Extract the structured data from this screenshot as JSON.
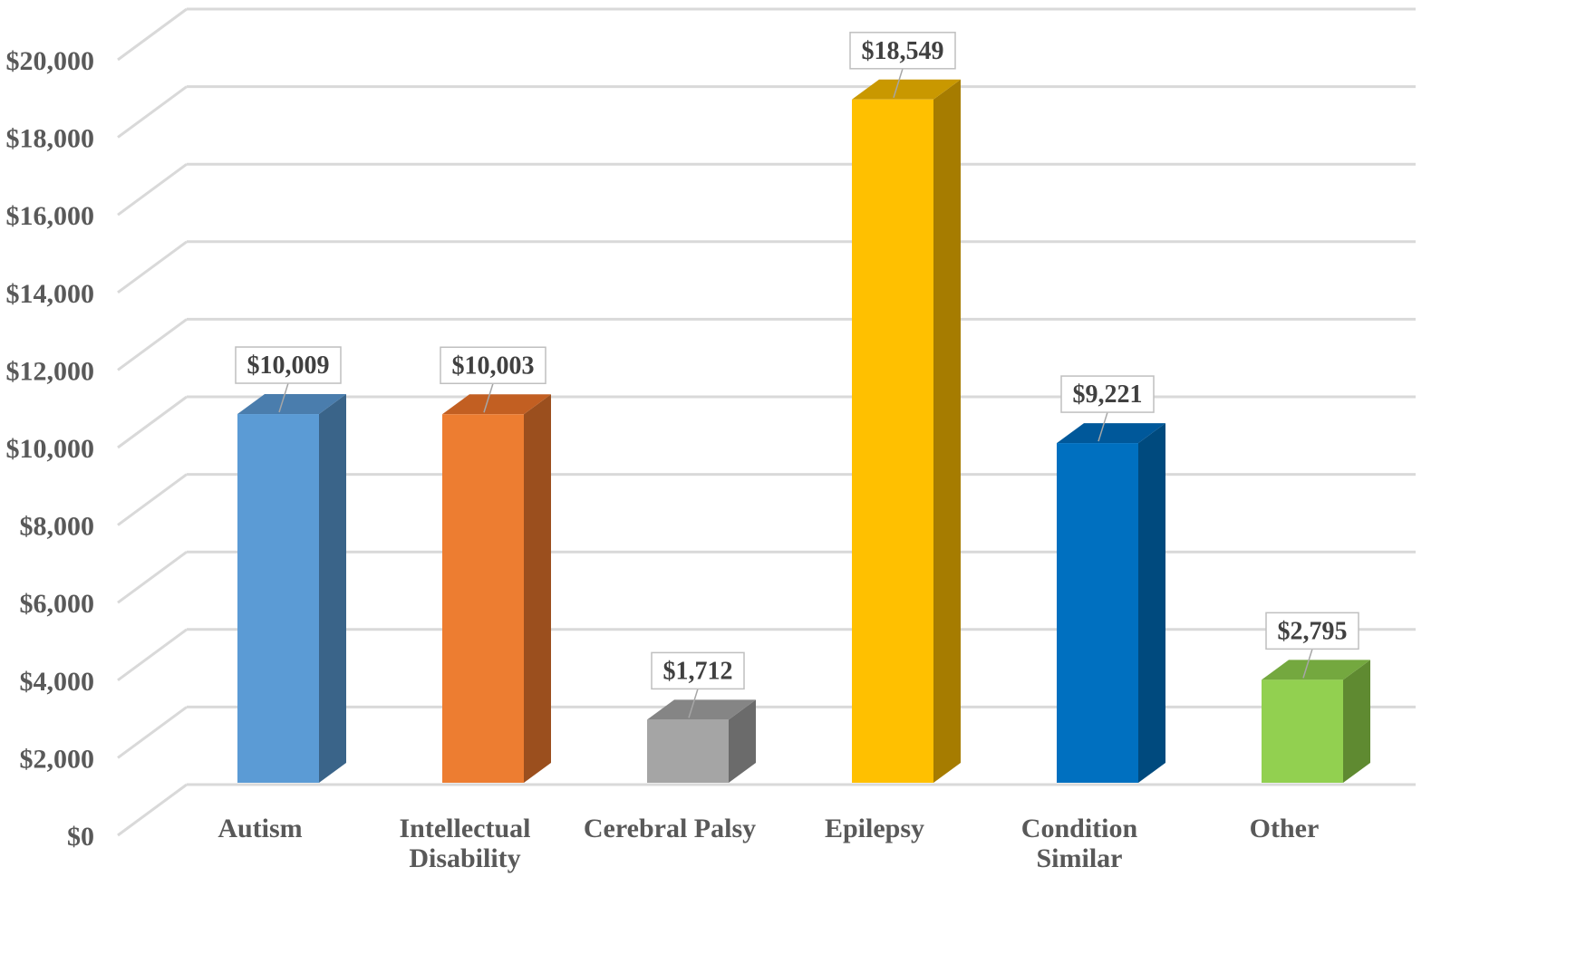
{
  "chart_data": {
    "type": "bar",
    "style": "3d-column",
    "categories": [
      "Autism",
      "Intellectual Disability",
      "Cerebral Palsy",
      "Epilepsy",
      "Condition Similar",
      "Other"
    ],
    "values": [
      10009,
      10003,
      1712,
      18549,
      9221,
      2795
    ],
    "data_labels": [
      "$10,009",
      "$10,003",
      "$1,712",
      "$18,549",
      "$9,221",
      "$2,795"
    ],
    "y_ticks": [
      "$0",
      "$2,000",
      "$4,000",
      "$6,000",
      "$8,000",
      "$10,000",
      "$12,000",
      "$14,000",
      "$16,000",
      "$18,000",
      "$20,000"
    ],
    "ylim": [
      0,
      20000
    ],
    "y_tick_step": 2000,
    "title": "",
    "xlabel": "",
    "ylabel": "",
    "grid": true,
    "legend": "none",
    "colors": [
      {
        "front": "#5B9BD5",
        "side": "#3A6489",
        "top": "#4A7DAD"
      },
      {
        "front": "#ED7D31",
        "side": "#9B4F1E",
        "top": "#C25F22"
      },
      {
        "front": "#A5A5A5",
        "side": "#6B6B6B",
        "top": "#858585"
      },
      {
        "front": "#FFC000",
        "side": "#A67C00",
        "top": "#C99800"
      },
      {
        "front": "#0070C0",
        "side": "#004A7E",
        "top": "#00589A"
      },
      {
        "front": "#92D050",
        "side": "#5F8A31",
        "top": "#74A83F"
      }
    ],
    "grid_color": "#D9D9D9",
    "tick_color": "#595959"
  }
}
